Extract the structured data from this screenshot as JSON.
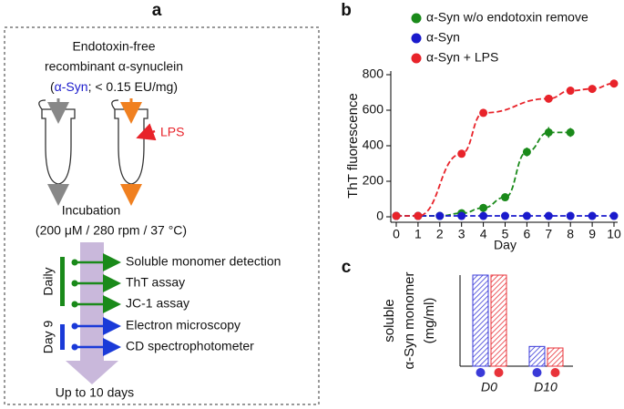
{
  "panels": {
    "a": "a",
    "b": "b",
    "c": "c"
  },
  "diagram": {
    "header": [
      "Endotoxin-free",
      "recombinant α-synuclein"
    ],
    "spec": {
      "open": "(",
      "protein": "α-Syn",
      "rest": "; < 0.15 EU/mg)"
    },
    "lps": "LPS",
    "incubation": "Incubation",
    "conditions": "(200 μM  / 280 rpm / 37 °C)",
    "groups": [
      "Daily",
      "Day 9"
    ],
    "steps": [
      "Soluble monomer detection",
      "ThT assay",
      "JC-1 assay",
      "Electron microscopy",
      "CD spectrophotometer"
    ],
    "duration": "Up to 10 days"
  },
  "chart_data": [
    {
      "type": "line",
      "xlabel": "Day",
      "ylabel": "ThT fluorescence",
      "xlim": [
        0,
        10
      ],
      "xticks": [
        0,
        1,
        2,
        3,
        4,
        5,
        6,
        7,
        8,
        9,
        10
      ],
      "ylim": [
        0,
        800
      ],
      "yticks": [
        0,
        200,
        400,
        600,
        800
      ],
      "series": [
        {
          "name": "α-Syn w/o endotoxin remove",
          "color": "#1a8a1a",
          "x": [
            0,
            1,
            2,
            3,
            4,
            5,
            6,
            7,
            8
          ],
          "values": [
            5,
            5,
            5,
            20,
            50,
            110,
            365,
            475,
            475
          ],
          "errors": [
            0,
            0,
            0,
            0,
            0,
            0,
            25,
            30,
            25
          ]
        },
        {
          "name": "α-Syn",
          "color": "#1a1acc",
          "x": [
            0,
            1,
            2,
            3,
            4,
            5,
            6,
            7,
            8,
            9,
            10
          ],
          "values": [
            5,
            5,
            5,
            5,
            5,
            5,
            5,
            5,
            5,
            5,
            5
          ],
          "errors": [
            0,
            0,
            0,
            0,
            0,
            0,
            0,
            0,
            0,
            0,
            0
          ]
        },
        {
          "name": "α-Syn + LPS",
          "color": "#e8232a",
          "x": [
            0,
            1,
            3,
            4,
            7,
            8,
            9,
            10
          ],
          "values": [
            5,
            5,
            355,
            585,
            665,
            710,
            720,
            750
          ],
          "errors": [
            0,
            0,
            0,
            0,
            20,
            0,
            20,
            20
          ]
        }
      ]
    },
    {
      "type": "bar",
      "ylabel": [
        "soluble",
        "α-Syn monomer",
        "(mg/ml)"
      ],
      "categories": [
        "D0",
        "D10"
      ],
      "ylim": [
        0,
        3
      ],
      "series": [
        {
          "color": "#3a3ad8",
          "values": [
            3.0,
            0.65
          ]
        },
        {
          "color": "#e8333a",
          "values": [
            3.0,
            0.6
          ]
        }
      ]
    }
  ]
}
